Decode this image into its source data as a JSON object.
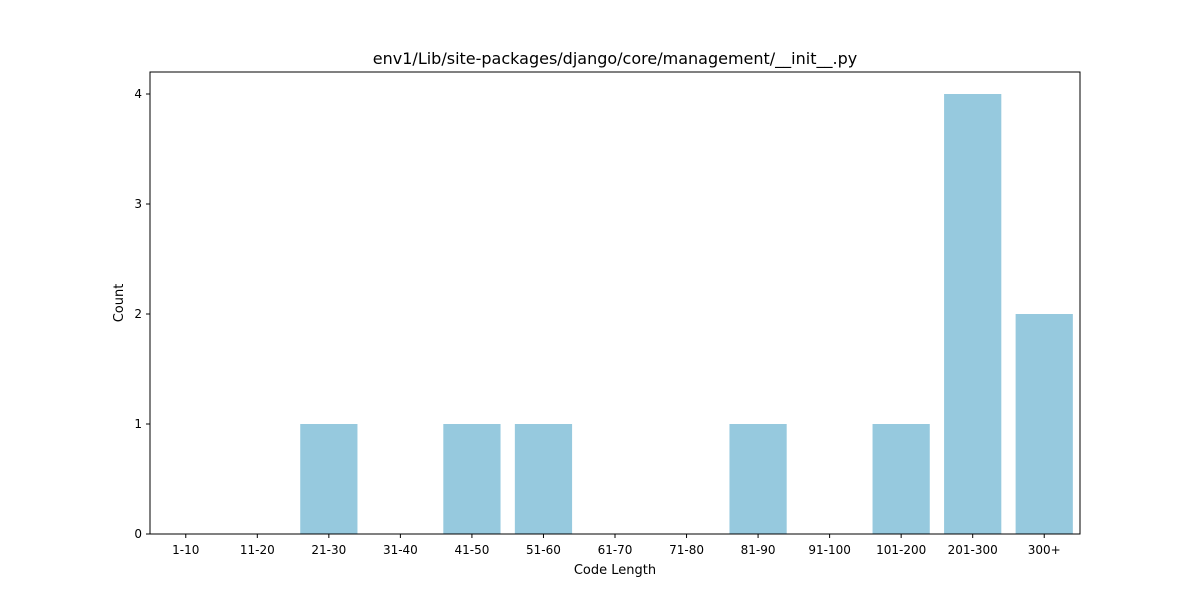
{
  "chart_data": {
    "type": "bar",
    "title": "env1/Lib/site-packages/django/core/management/__init__.py",
    "xlabel": "Code Length",
    "ylabel": "Count",
    "categories": [
      "1-10",
      "11-20",
      "21-30",
      "31-40",
      "41-50",
      "51-60",
      "61-70",
      "71-80",
      "81-90",
      "91-100",
      "101-200",
      "201-300",
      "300+"
    ],
    "values": [
      0,
      0,
      1,
      0,
      1,
      1,
      0,
      0,
      1,
      0,
      1,
      4,
      2
    ],
    "ylim": [
      0,
      4.2
    ],
    "yticks": [
      0,
      1,
      2,
      3,
      4
    ],
    "bar_color": "#96c9de",
    "grid": false,
    "legend": "none"
  }
}
